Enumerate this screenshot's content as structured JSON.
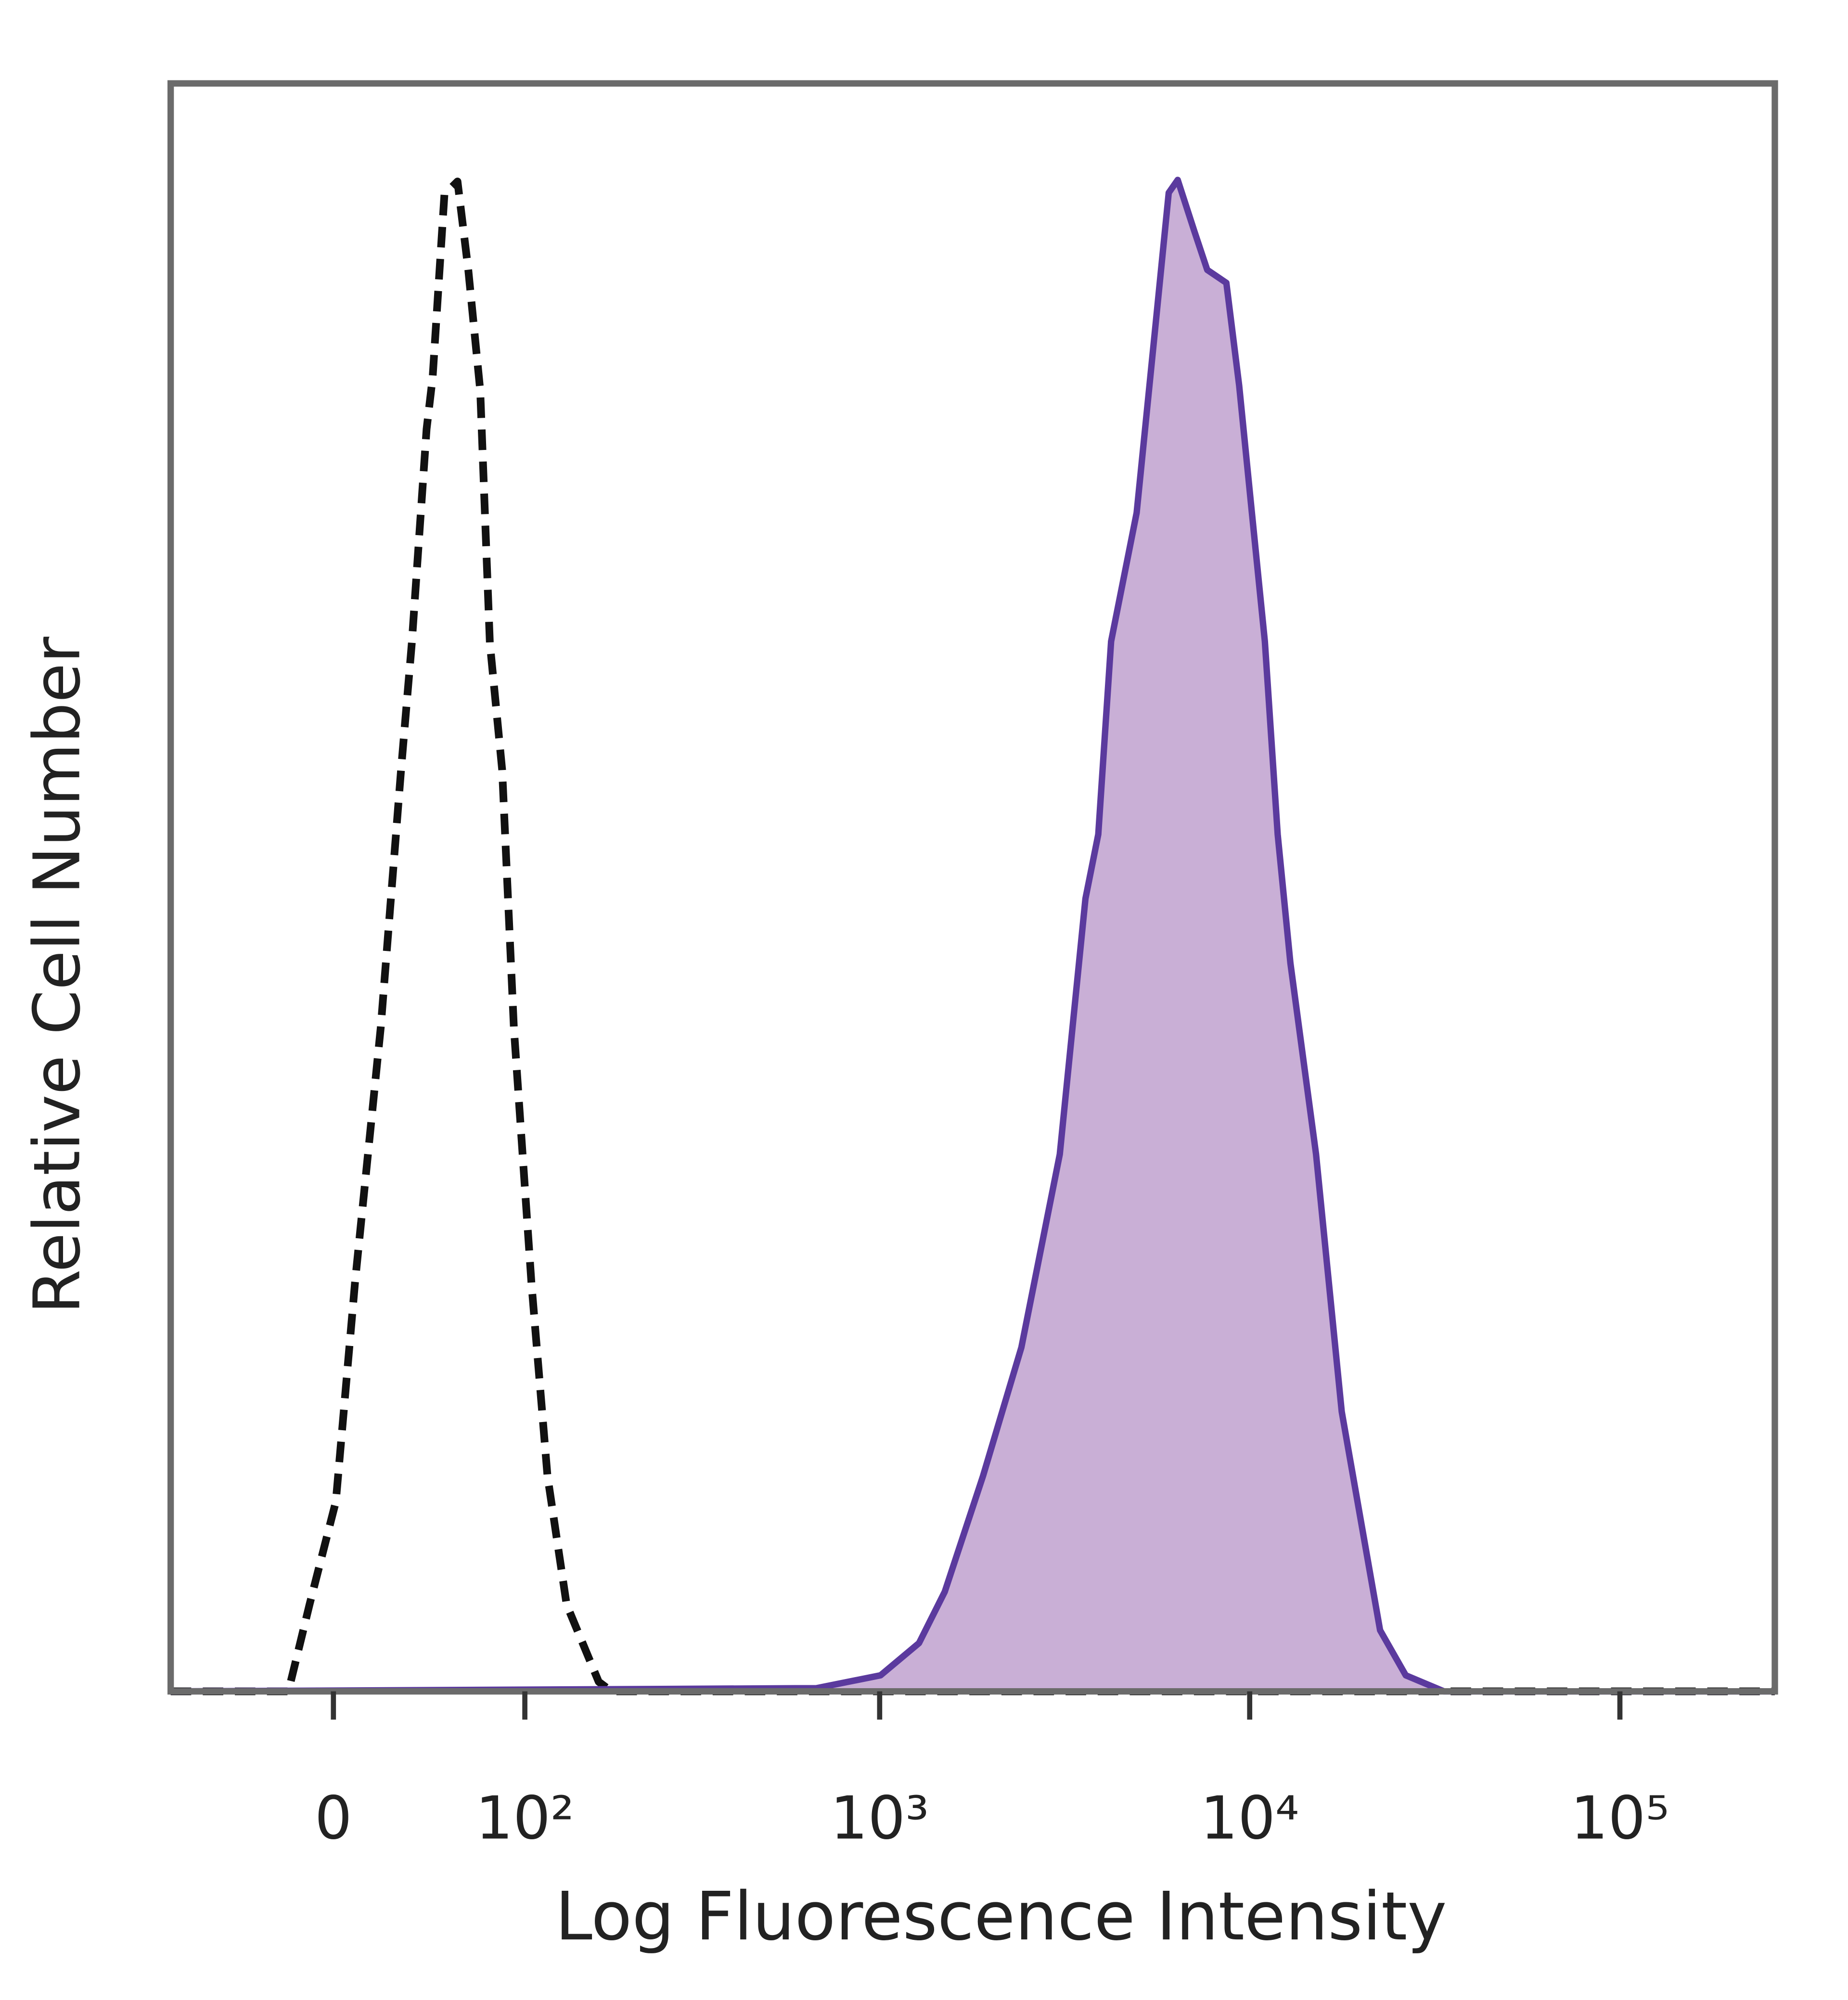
{
  "chart_data": {
    "type": "histogram-line",
    "x_label": "Log Fluorescence Intensity",
    "y_label": "Relative Cell Number",
    "x_scale": {
      "type": "asinh",
      "cofactor": 67
    },
    "xlim": [
      -80,
      262144
    ],
    "ylim": [
      0,
      100
    ],
    "xticks": [
      0,
      {
        "value": 100,
        "label": "10²"
      },
      {
        "value": 1000,
        "label": "10³"
      },
      {
        "value": 10000,
        "label": "10⁴"
      },
      {
        "value": 100000,
        "label": "10⁵"
      }
    ],
    "frame_color": "#6b6b6b",
    "series": [
      {
        "color": "#111111",
        "style": "dashed",
        "filled": false,
        "x": [
          -80,
          -19,
          -10,
          1,
          9,
          20,
          29,
          34,
          41,
          44,
          50,
          57,
          63,
          70,
          76,
          84,
          92,
          105,
          118,
          135,
          168,
          183,
          262144
        ],
        "values": [
          0,
          0,
          5.4,
          11.8,
          25.4,
          41.3,
          57.3,
          65.2,
          78.5,
          81.7,
          93.1,
          93.9,
          88.4,
          80.9,
          65.2,
          57.3,
          41.3,
          25.4,
          13.4,
          5.4,
          0.6,
          0,
          0
        ]
      },
      {
        "color": "#5b3a9e",
        "fill": "#c9afd6",
        "style": "solid",
        "filled": true,
        "x": [
          -80,
          674,
          1005,
          1278,
          1500,
          1904,
          2418,
          3070,
          3600,
          3900,
          4222,
          4950,
          5580,
          6044,
          6390,
          7090,
          7680,
          8650,
          9370,
          10140,
          10990,
          11900,
          12880,
          15110,
          17730,
          22500,
          26400,
          33500,
          262144
        ],
        "values": [
          0,
          0.2,
          1.0,
          3.0,
          6.2,
          13.4,
          21.4,
          33.4,
          49.3,
          53.3,
          65.3,
          73.3,
          85.2,
          93.2,
          94.0,
          90.8,
          88.4,
          87.6,
          81.2,
          73.3,
          65.3,
          53.3,
          45.3,
          33.4,
          17.4,
          3.8,
          1.0,
          0,
          0
        ]
      }
    ]
  }
}
